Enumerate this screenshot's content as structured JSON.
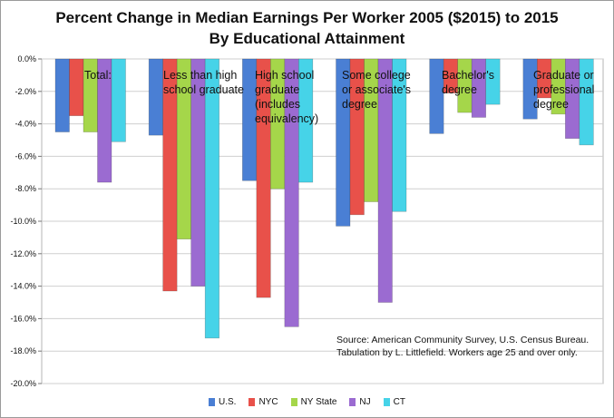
{
  "chart_data": {
    "type": "bar",
    "title": "Percent Change in Median Earnings Per Worker 2005 ($2015) to 2015",
    "subtitle": "By Educational Attainment",
    "categories": [
      "Total:",
      "Less than high school graduate",
      "High school graduate (includes equivalency)",
      "Some college or associate's degree",
      "Bachelor's degree",
      "Graduate or professional degree"
    ],
    "category_label_lines": [
      [
        "Total:"
      ],
      [
        "Less than high",
        "school graduate"
      ],
      [
        "High school",
        "graduate",
        "(includes",
        "equivalency)"
      ],
      [
        "Some college",
        "or associate's",
        "degree"
      ],
      [
        "Bachelor's",
        "degree"
      ],
      [
        "Graduate or",
        "professional",
        "degree"
      ]
    ],
    "series": [
      {
        "name": "U.S.",
        "color": "#4a7fd4",
        "values": [
          -4.5,
          -4.7,
          -7.5,
          -10.3,
          -4.6,
          -3.7
        ]
      },
      {
        "name": "NYC",
        "color": "#e8514a",
        "values": [
          -3.5,
          -14.3,
          -14.7,
          -9.6,
          -2.1,
          -2.4
        ]
      },
      {
        "name": "NY State",
        "color": "#a5d64a",
        "values": [
          -4.5,
          -11.1,
          -8.0,
          -8.8,
          -3.3,
          -3.4
        ]
      },
      {
        "name": "NJ",
        "color": "#9b6bd1",
        "values": [
          -7.6,
          -14.0,
          -16.5,
          -15.0,
          -3.6,
          -4.9
        ]
      },
      {
        "name": "CT",
        "color": "#46d3e8",
        "values": [
          -5.1,
          -17.2,
          -7.6,
          -9.4,
          -2.8,
          -5.3
        ]
      }
    ],
    "ylim": [
      -20,
      0
    ],
    "y_ticks": [
      "0.0%",
      "-2.0%",
      "-4.0%",
      "-6.0%",
      "-8.0%",
      "-10.0%",
      "-12.0%",
      "-14.0%",
      "-16.0%",
      "-18.0%",
      "-20.0%"
    ],
    "y_tick_values": [
      0,
      -2,
      -4,
      -6,
      -8,
      -10,
      -12,
      -14,
      -16,
      -18,
      -20
    ],
    "grid": true,
    "legend_position": "bottom"
  },
  "source_lines": [
    "Source:  American Community Survey, U.S. Census Bureau.",
    "Tabulation by L. Littlefield.  Workers age 25 and over only."
  ]
}
